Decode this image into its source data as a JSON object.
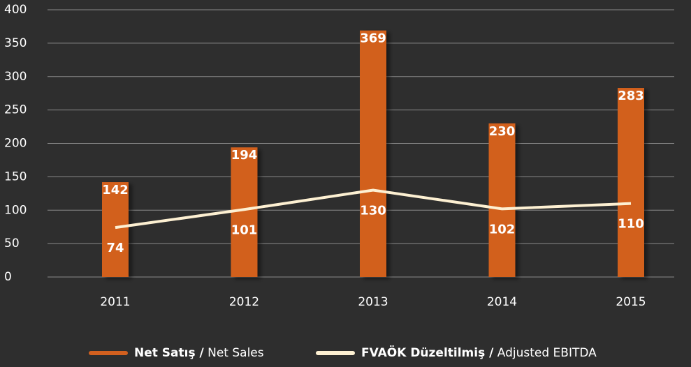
{
  "chart_data": {
    "type": "bar",
    "categories": [
      "2011",
      "2012",
      "2013",
      "2014",
      "2015"
    ],
    "series": [
      {
        "name": "Net Satış / Net Sales",
        "type": "bar",
        "color": "#d2601f",
        "values": [
          142,
          194,
          369,
          230,
          283
        ]
      },
      {
        "name": "FVAÖK Düzeltilmiş / Adjusted EBITDA",
        "type": "line",
        "color": "#fdf0d2",
        "values": [
          74,
          101,
          130,
          102,
          110
        ]
      }
    ],
    "ylim": [
      0,
      400
    ],
    "yticks": [
      0,
      50,
      100,
      150,
      200,
      250,
      300,
      350,
      400
    ],
    "grid": true,
    "legend": "bottom"
  }
}
